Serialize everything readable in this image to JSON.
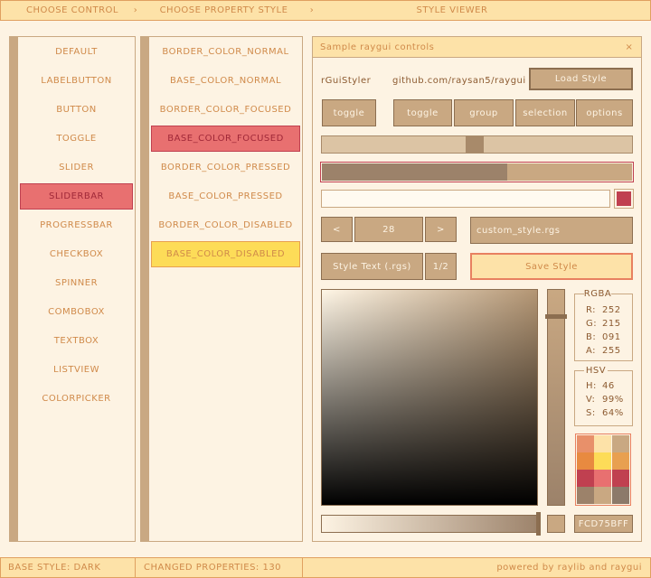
{
  "header": {
    "steps": [
      "CHOOSE CONTROL",
      "CHOOSE PROPERTY STYLE",
      "STYLE VIEWER"
    ],
    "separator": "›"
  },
  "controls": {
    "items": [
      "DEFAULT",
      "LABELBUTTON",
      "BUTTON",
      "TOGGLE",
      "SLIDER",
      "SLIDERBAR",
      "PROGRESSBAR",
      "CHECKBOX",
      "SPINNER",
      "COMBOBOX",
      "TEXTBOX",
      "LISTVIEW",
      "COLORPICKER"
    ]
  },
  "properties": {
    "items": [
      "BORDER_COLOR_NORMAL",
      "BASE_COLOR_NORMAL",
      "BORDER_COLOR_FOCUSED",
      "BASE_COLOR_FOCUSED",
      "BORDER_COLOR_PRESSED",
      "BASE_COLOR_PRESSED",
      "BORDER_COLOR_DISABLED",
      "BASE_COLOR_DISABLED"
    ]
  },
  "window": {
    "title": "Sample raygui controls",
    "close": "×",
    "label": "rGuiStyler",
    "link": "github.com/raysan5/raygui",
    "load_button": "Load Style",
    "toggle": "toggle",
    "group": [
      "toggle",
      "group",
      "selection",
      "options"
    ],
    "spinner": {
      "prev": "<",
      "value": "28",
      "next": ">"
    },
    "filename": "custom_style.rgs",
    "text_button": "Style Text (.rgs)",
    "page": "1/2",
    "save_button": "Save Style"
  },
  "color_picker": {
    "rgba": {
      "title": "RGBA",
      "rows": [
        [
          "R:",
          "252"
        ],
        [
          "G:",
          "215"
        ],
        [
          "B:",
          "091"
        ],
        [
          "A:",
          "255"
        ]
      ]
    },
    "hsv": {
      "title": "HSV",
      "rows": [
        [
          "H:",
          "46"
        ],
        [
          "V:",
          "99%"
        ],
        [
          "S:",
          "64%"
        ]
      ]
    },
    "hex": "FCD75BFF"
  },
  "status": {
    "base_style": "BASE STYLE: DARK",
    "changed": "CHANGED PROPERTIES: 130",
    "powered": "powered by raylib and raygui"
  }
}
